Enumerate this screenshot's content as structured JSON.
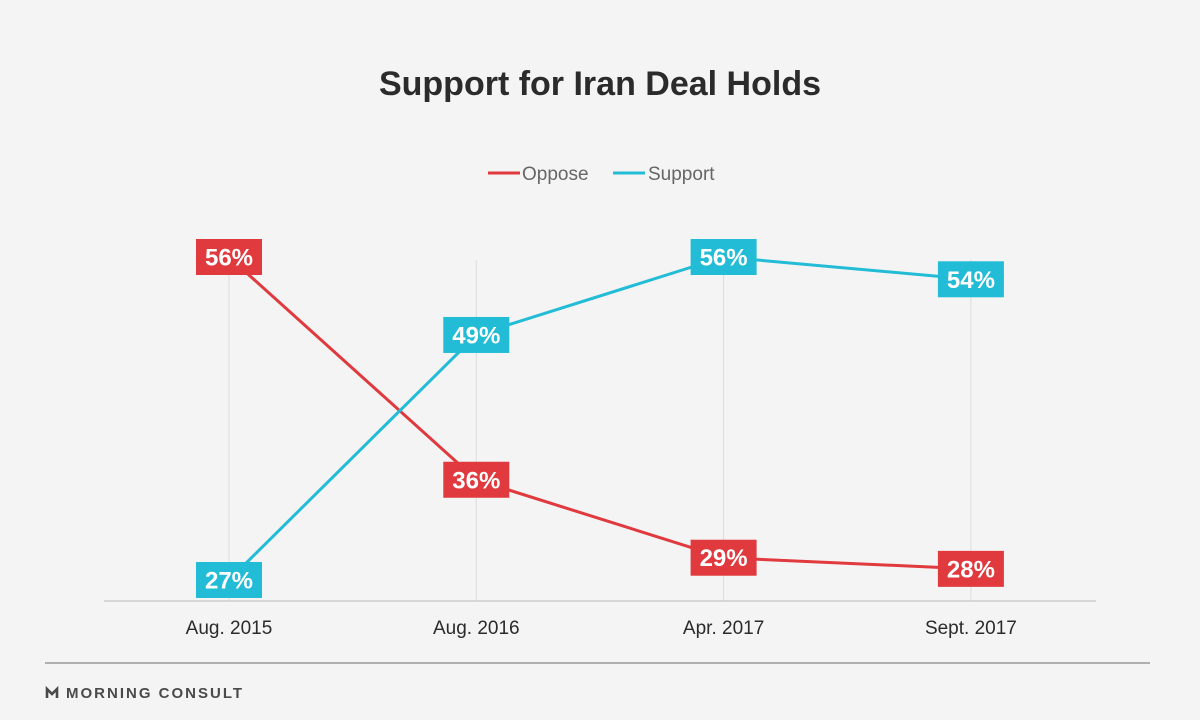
{
  "chart_data": {
    "type": "line",
    "title": "Support for Iran Deal Holds",
    "categories": [
      "Aug. 2015",
      "Aug. 2016",
      "Apr. 2017",
      "Sept. 2017"
    ],
    "series": [
      {
        "name": "Oppose",
        "values": [
          56,
          36,
          29,
          28
        ],
        "labels": [
          "56%",
          "36%",
          "29%",
          "28%"
        ],
        "color": "#e0393e"
      },
      {
        "name": "Support",
        "values": [
          27,
          49,
          56,
          54
        ],
        "labels": [
          "27%",
          "49%",
          "56%",
          "54%"
        ],
        "color": "#23bcd6"
      }
    ],
    "legend_position": "top-center",
    "grid": "vertical",
    "ylim": [
      27,
      56
    ]
  },
  "footer": {
    "brand": "MORNING CONSULT",
    "brand_icon": "morning-consult-logo-icon"
  },
  "colors": {
    "background": "#f4f4f4",
    "gridline": "#dddddd",
    "axis": "#cccccc",
    "divider": "#999999"
  }
}
